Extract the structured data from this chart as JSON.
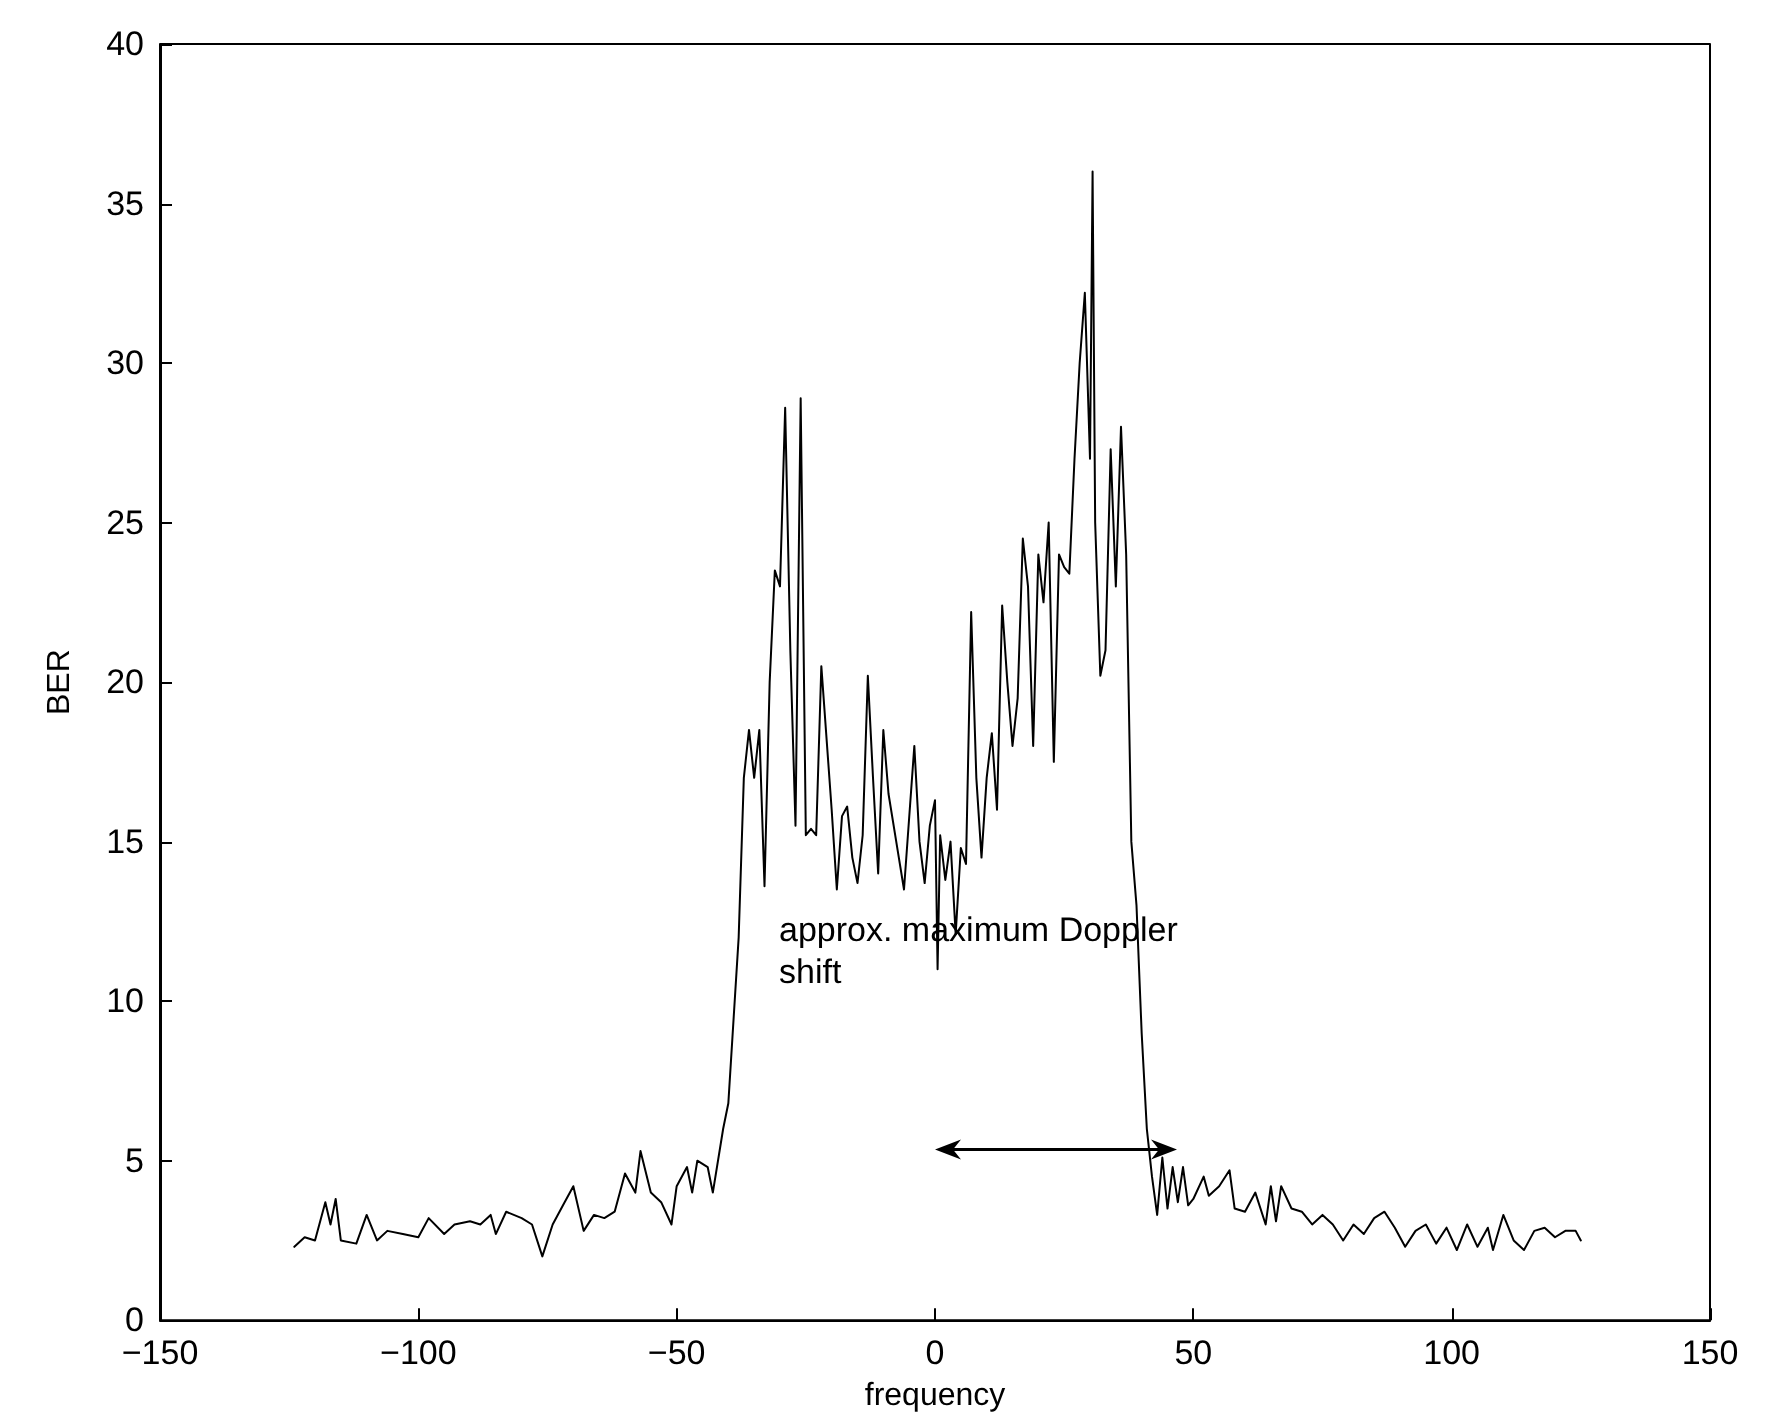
{
  "chart_data": {
    "type": "line",
    "xlabel": "frequency",
    "ylabel": "BER",
    "xlim": [
      -150,
      150
    ],
    "xticks": [
      -150,
      -100,
      -50,
      0,
      50,
      100,
      150
    ],
    "ylim": [
      0,
      40
    ],
    "yticks": [
      0,
      5,
      10,
      15,
      20,
      25,
      30,
      35,
      40
    ],
    "grid": false,
    "marker": "none",
    "line_style": "solid",
    "annotations": [
      "approx. maximum Doppler\nshift"
    ],
    "series": [
      {
        "color": "#000000",
        "x": [
          -124,
          -122,
          -120,
          -118,
          -117,
          -116,
          -115,
          -112,
          -110,
          -108,
          -106,
          -103,
          -100,
          -98,
          -95,
          -93,
          -90,
          -88,
          -86,
          -85,
          -83,
          -80,
          -78,
          -76,
          -74,
          -72,
          -70,
          -68,
          -66,
          -64,
          -62,
          -60,
          -58,
          -57,
          -55,
          -53,
          -51,
          -50,
          -48,
          -47,
          -46,
          -44,
          -43,
          -41,
          -40,
          -38,
          -37,
          -36,
          -35,
          -34,
          -33,
          -32,
          -31,
          -30,
          -29,
          -28,
          -27,
          -26,
          -25,
          -24,
          -23,
          -22,
          -20,
          -19,
          -18,
          -17,
          -16,
          -15,
          -14,
          -13,
          -12,
          -11,
          -10,
          -9,
          -7,
          -6,
          -4,
          -3,
          -2,
          -1,
          0,
          0.5,
          1,
          2,
          3,
          4,
          5,
          6,
          7,
          8,
          9,
          10,
          11,
          12,
          13,
          14,
          15,
          16,
          17,
          18,
          19,
          20,
          21,
          22,
          23,
          24,
          25,
          26,
          27,
          28,
          29,
          30,
          30.5,
          31,
          32,
          33,
          34,
          35,
          36,
          37,
          38,
          39,
          40,
          41,
          42,
          43,
          44,
          45,
          46,
          47,
          48,
          49,
          50,
          52,
          53,
          55,
          57,
          58,
          60,
          62,
          64,
          65,
          66,
          67,
          69,
          71,
          73,
          75,
          77,
          79,
          81,
          83,
          85,
          87,
          89,
          91,
          93,
          95,
          97,
          99,
          101,
          103,
          105,
          107,
          108,
          110,
          112,
          114,
          116,
          118,
          120,
          122,
          124,
          125
        ],
        "values": [
          2.3,
          2.6,
          2.5,
          3.7,
          3.0,
          3.8,
          2.5,
          2.4,
          3.3,
          2.5,
          2.8,
          2.7,
          2.6,
          3.2,
          2.7,
          3.0,
          3.1,
          3.0,
          3.3,
          2.7,
          3.4,
          3.2,
          3.0,
          2.0,
          3.0,
          3.6,
          4.2,
          2.8,
          3.3,
          3.2,
          3.4,
          4.6,
          4.0,
          5.3,
          4.0,
          3.7,
          3.0,
          4.2,
          4.8,
          4.0,
          5.0,
          4.8,
          4.0,
          6.0,
          6.8,
          12,
          17,
          18.5,
          17,
          18.5,
          13.6,
          20,
          23.5,
          23,
          28.6,
          21,
          15.5,
          28.9,
          15.2,
          15.4,
          15.2,
          20.5,
          16,
          13.5,
          15.8,
          16.1,
          14.5,
          13.7,
          15.2,
          20.2,
          17,
          14,
          18.5,
          16.5,
          14.5,
          13.5,
          18,
          15,
          13.7,
          15.5,
          16.3,
          11,
          15.2,
          13.8,
          15,
          12.1,
          14.8,
          14.3,
          22.2,
          17,
          14.5,
          17,
          18.4,
          16,
          22.4,
          20,
          18,
          19.5,
          24.5,
          23,
          18,
          24,
          22.5,
          25,
          17.5,
          24,
          23.6,
          23.4,
          27,
          30,
          32.2,
          27,
          36,
          25,
          20.2,
          21,
          27.3,
          23,
          28,
          24,
          15,
          13,
          9,
          6,
          4.5,
          3.3,
          5.1,
          3.5,
          4.8,
          3.7,
          4.8,
          3.6,
          3.8,
          4.5,
          3.9,
          4.2,
          4.7,
          3.5,
          3.4,
          4.0,
          3.0,
          4.2,
          3.1,
          4.2,
          3.5,
          3.4,
          3.0,
          3.3,
          3.0,
          2.5,
          3.0,
          2.7,
          3.2,
          3.4,
          2.9,
          2.3,
          2.8,
          3.0,
          2.4,
          2.9,
          2.2,
          3.0,
          2.3,
          2.9,
          2.2,
          3.3,
          2.5,
          2.2,
          2.8,
          2.9,
          2.6,
          2.8,
          2.8,
          2.5
        ]
      }
    ]
  }
}
